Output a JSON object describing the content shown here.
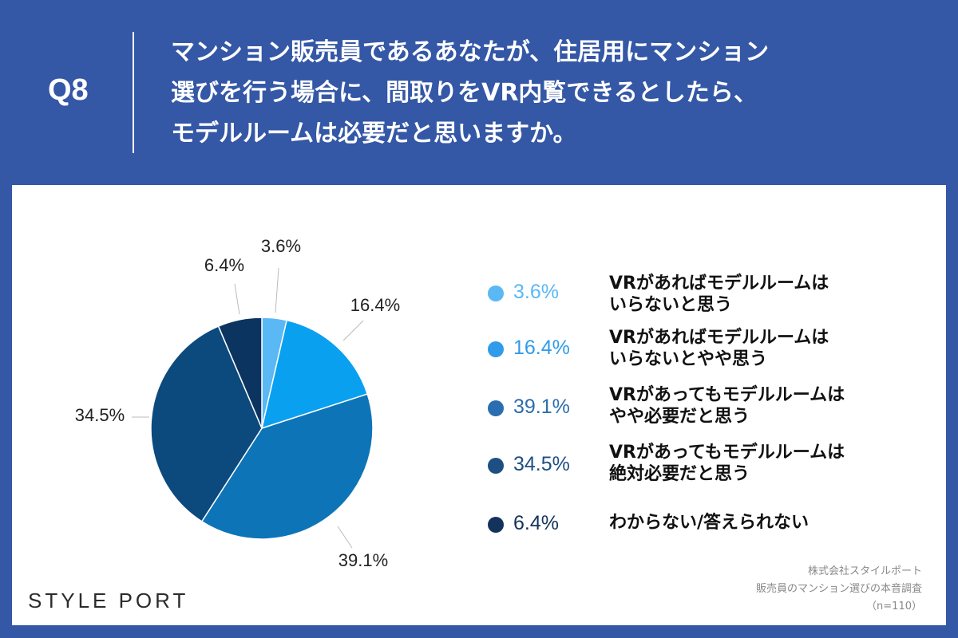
{
  "header": {
    "q_label": "Q8",
    "question_lines": [
      "マンション販売員であるあなたが、住居用にマンション",
      "選びを行う場合に、間取りをVR内覧できるとしたら、",
      "モデルルームは必要だと思いますか。"
    ]
  },
  "colors": {
    "background": "#3457a6",
    "panel": "#ffffff"
  },
  "chart_data": {
    "type": "pie",
    "categories": [
      "VRがあればモデルルームはいらないと思う",
      "VRがあればモデルルームはいらないとやや思う",
      "VRがあってもモデルルームはやや必要だと思う",
      "VRがあってもモデルルームは絶対必要だと思う",
      "わからない/答えられない"
    ],
    "values": [
      3.6,
      16.4,
      39.1,
      34.5,
      6.4
    ],
    "value_labels": [
      "3.6%",
      "16.4%",
      "39.1%",
      "34.5%",
      "6.4%"
    ],
    "colors": [
      "#5ab8f5",
      "#0aa0f0",
      "#0e74b8",
      "#0c4a7e",
      "#0b3560"
    ],
    "legend_placement": "right",
    "start": "12 o'clock, clockwise"
  },
  "legend": [
    {
      "pct": "3.6%",
      "line1": "VRがあればモデルルームは",
      "line2": "いらないと思う",
      "color": "#5ab8f5"
    },
    {
      "pct": "16.4%",
      "line1": "VRがあればモデルルームは",
      "line2": "いらないとやや思う",
      "color": "#2f9bea"
    },
    {
      "pct": "39.1%",
      "line1": "VRがあってもモデルルームは",
      "line2": "やや必要だと思う",
      "color": "#2a6db0"
    },
    {
      "pct": "34.5%",
      "line1": "VRがあってもモデルルームは",
      "line2": "絶対必要だと思う",
      "color": "#1e4f82"
    },
    {
      "pct": "6.4%",
      "line1": "わからない/答えられない",
      "line2": "",
      "color": "#14335c"
    }
  ],
  "footer": {
    "logo": "STYLE PORT",
    "source_lines": [
      "株式会社スタイルポート",
      "販売員のマンション選びの本音調査",
      "（n=110）"
    ]
  }
}
